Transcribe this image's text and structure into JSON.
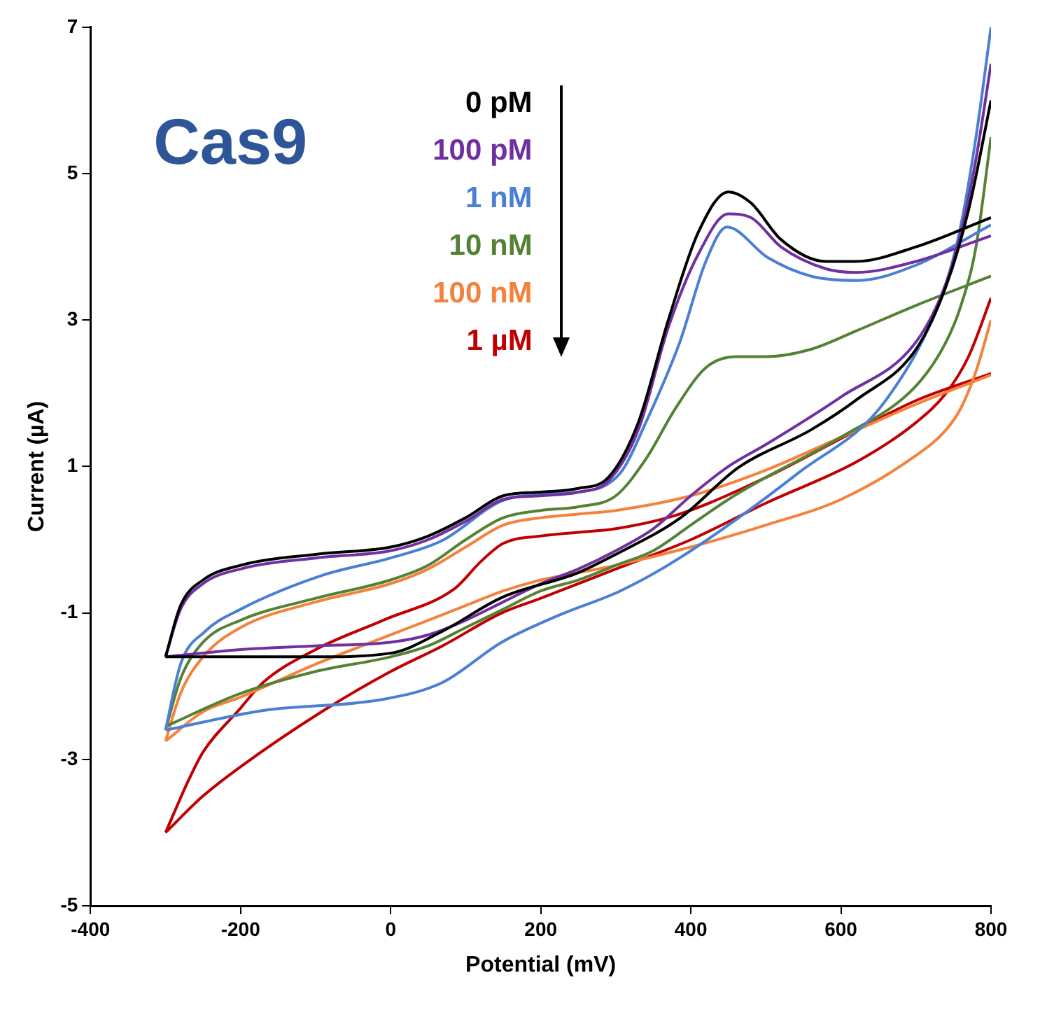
{
  "chart_data": {
    "type": "line",
    "xlabel": "Potential (mV)",
    "ylabel": "Current (µA)",
    "annotations": [
      "Cas9"
    ],
    "xlim": [
      -400,
      800
    ],
    "xticks": [
      -400,
      -200,
      0,
      200,
      400,
      600,
      800
    ],
    "ylim": [
      -5,
      7
    ],
    "yticks": [
      -5,
      -3,
      -1,
      1,
      3,
      5,
      7
    ],
    "grid": false,
    "legend": "top",
    "series": [
      {
        "name": "0 pM",
        "color": "#000000",
        "x": [
          -300,
          -280,
          -250,
          -200,
          -100,
          0,
          50,
          100,
          150,
          200,
          250,
          290,
          330,
          370,
          410,
          450,
          480,
          520,
          580,
          620,
          700,
          800
        ],
        "values": [
          -1.6,
          -0.9,
          -0.55,
          -0.35,
          -0.2,
          -0.1,
          0.05,
          0.3,
          0.6,
          0.65,
          0.7,
          0.85,
          1.6,
          3.0,
          4.2,
          4.75,
          4.6,
          4.1,
          3.8,
          3.8,
          4.0,
          4.4
        ]
      },
      {
        "color": "#000000",
        "x": [
          -300,
          -200,
          -100,
          0,
          69,
          148,
          250,
          300,
          385,
          464,
          560,
          622,
          700,
          740,
          770,
          800
        ],
        "values": [
          -1.6,
          -1.6,
          -1.6,
          -1.55,
          -1.25,
          -0.79,
          -0.45,
          -0.2,
          0.29,
          0.99,
          1.5,
          1.92,
          2.6,
          3.46,
          4.5,
          6.0
        ]
      },
      {
        "name": "100 pM",
        "color": "#7030a0",
        "x": [
          -300,
          -280,
          -250,
          -200,
          -100,
          0,
          50,
          100,
          150,
          200,
          250,
          290,
          330,
          370,
          410,
          450,
          480,
          520,
          580,
          620,
          700,
          800
        ],
        "values": [
          -1.6,
          -0.95,
          -0.6,
          -0.4,
          -0.25,
          -0.15,
          0.0,
          0.25,
          0.55,
          0.6,
          0.65,
          0.8,
          1.5,
          2.9,
          3.9,
          4.45,
          4.4,
          4.0,
          3.7,
          3.65,
          3.8,
          4.15
        ]
      },
      {
        "color": "#7030a0",
        "x": [
          -300,
          -200,
          -100,
          0,
          50,
          100,
          150,
          200,
          250,
          300,
          350,
          400,
          450,
          500,
          600,
          700,
          740,
          760,
          780,
          800
        ],
        "values": [
          -1.6,
          -1.5,
          -1.45,
          -1.4,
          -1.3,
          -1.1,
          -0.85,
          -0.6,
          -0.4,
          -0.15,
          0.15,
          0.6,
          1.0,
          1.3,
          1.95,
          2.7,
          3.5,
          4.2,
          5.2,
          6.5
        ]
      },
      {
        "name": "1 nM",
        "color": "#4a7fd4",
        "x": [
          -300,
          -280,
          -247,
          -200,
          -89,
          0,
          69,
          148,
          200,
          250,
          306,
          340,
          385,
          420,
          448,
          503,
          560,
          622,
          700,
          800
        ],
        "values": [
          -2.6,
          -1.7,
          -1.25,
          -0.95,
          -0.48,
          -0.25,
          -0.01,
          0.53,
          0.62,
          0.65,
          0.91,
          1.6,
          2.69,
          3.8,
          4.27,
          3.85,
          3.6,
          3.54,
          3.75,
          4.3
        ]
      },
      {
        "color": "#4a7fd4",
        "x": [
          -300,
          -168,
          -10,
          69,
          148,
          227,
          306,
          385,
          543,
          661,
          740,
          760,
          780,
          800
        ],
        "values": [
          -2.6,
          -2.33,
          -2.18,
          -1.95,
          -1.4,
          -1.02,
          -0.7,
          -0.25,
          0.91,
          1.92,
          3.5,
          4.3,
          5.5,
          7.0
        ]
      },
      {
        "name": "10 nM",
        "color": "#548235",
        "x": [
          -300,
          -280,
          -250,
          -200,
          -100,
          0,
          50,
          100,
          150,
          200,
          250,
          300,
          340,
          380,
          420,
          460,
          500,
          560,
          620,
          700,
          800
        ],
        "values": [
          -2.6,
          -1.9,
          -1.4,
          -1.1,
          -0.8,
          -0.55,
          -0.35,
          0.0,
          0.3,
          0.4,
          0.45,
          0.6,
          1.1,
          1.8,
          2.35,
          2.5,
          2.5,
          2.6,
          2.85,
          3.2,
          3.6
        ]
      },
      {
        "color": "#548235",
        "x": [
          -300,
          -200,
          -100,
          0,
          50,
          100,
          150,
          200,
          250,
          300,
          350,
          400,
          450,
          500,
          600,
          700,
          740,
          760,
          780,
          800
        ],
        "values": [
          -2.55,
          -2.1,
          -1.8,
          -1.6,
          -1.45,
          -1.2,
          -0.95,
          -0.7,
          -0.55,
          -0.35,
          -0.15,
          0.2,
          0.55,
          0.85,
          1.4,
          2.1,
          2.7,
          3.2,
          4.0,
          5.5
        ]
      },
      {
        "name": "100 nM",
        "color": "#f4823c",
        "x": [
          -300,
          -280,
          -250,
          -200,
          -100,
          0,
          50,
          100,
          150,
          200,
          250,
          300,
          400,
          500,
          600,
          700,
          800
        ],
        "values": [
          -2.75,
          -2.1,
          -1.6,
          -1.2,
          -0.85,
          -0.6,
          -0.4,
          -0.1,
          0.2,
          0.3,
          0.35,
          0.4,
          0.6,
          0.95,
          1.4,
          1.85,
          2.25
        ]
      },
      {
        "color": "#f4823c",
        "x": [
          -300,
          -250,
          -200,
          -100,
          0,
          50,
          100,
          150,
          200,
          250,
          300,
          400,
          500,
          600,
          700,
          740,
          760,
          780,
          800
        ],
        "values": [
          -2.75,
          -2.35,
          -2.15,
          -1.7,
          -1.3,
          -1.1,
          -0.9,
          -0.7,
          -0.55,
          -0.45,
          -0.35,
          -0.1,
          0.2,
          0.55,
          1.15,
          1.5,
          1.8,
          2.3,
          3.0
        ]
      },
      {
        "name": "1 µM",
        "color": "#c00000",
        "x": [
          -300,
          -270,
          -250,
          -200,
          -170,
          -100,
          -10,
          85,
          120,
          150,
          200,
          250,
          300,
          385,
          500,
          622,
          700,
          800
        ],
        "values": [
          -4.0,
          -3.3,
          -2.9,
          -2.3,
          -1.95,
          -1.5,
          -1.1,
          -0.67,
          -0.3,
          -0.05,
          0.05,
          0.1,
          0.15,
          0.35,
          0.85,
          1.5,
          1.9,
          2.27
        ]
      },
      {
        "color": "#c00000",
        "x": [
          -300,
          -250,
          -200,
          -89,
          0,
          69,
          148,
          200,
          300,
          400,
          500,
          622,
          700,
          740,
          770,
          800
        ],
        "values": [
          -4.0,
          -3.5,
          -3.1,
          -2.33,
          -1.8,
          -1.45,
          -1.0,
          -0.8,
          -0.4,
          0.0,
          0.5,
          1.07,
          1.6,
          2.0,
          2.5,
          3.3
        ]
      }
    ]
  }
}
